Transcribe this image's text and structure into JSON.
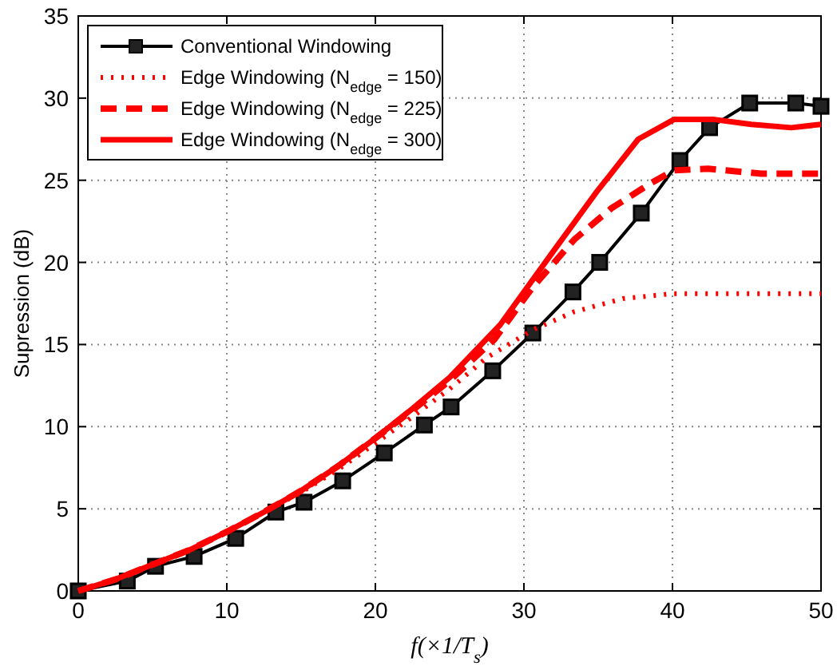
{
  "chart_data": {
    "type": "line",
    "xlabel": "f(×1/T$_{s}$)",
    "ylabel": "Supression (dB)",
    "xlim": [
      0,
      50
    ],
    "ylim": [
      0,
      35
    ],
    "xticks": [
      0,
      10,
      20,
      30,
      40,
      50
    ],
    "yticks": [
      0,
      5,
      10,
      15,
      20,
      25,
      30,
      35
    ],
    "grid": true,
    "legend": "top left",
    "series": [
      {
        "name": "Conventional Windowing",
        "color": "#000000",
        "marker": "square",
        "line_style": "solid",
        "x": [
          0,
          3.3,
          5.2,
          7.8,
          10.6,
          13.3,
          15.2,
          17.8,
          20.6,
          23.3,
          25.1,
          27.9,
          30.6,
          33.3,
          35.1,
          37.9,
          40.5,
          42.5,
          45.2,
          48.3,
          50
        ],
        "values": [
          0,
          0.6,
          1.5,
          2.1,
          3.2,
          4.8,
          5.4,
          6.7,
          8.4,
          10.1,
          11.2,
          13.4,
          15.7,
          18.2,
          20,
          23,
          26.2,
          28.2,
          29.7,
          29.7,
          29.5
        ]
      },
      {
        "name": "Edge Windowing (N$_{edge}$ = 150)",
        "color": "#ff0000",
        "marker": "none",
        "line_style": "dotted",
        "x": [
          0,
          2.5,
          5,
          7.5,
          10,
          12.5,
          15,
          17.5,
          20,
          22.5,
          25,
          27.5,
          30.6,
          33.4,
          36.7,
          40.1,
          45,
          50
        ],
        "values": [
          0,
          0.7,
          1.6,
          2.5,
          3.6,
          4.8,
          6.0,
          7.4,
          9.0,
          10.6,
          12.3,
          14.2,
          15.9,
          17,
          17.8,
          18.1,
          18.1,
          18.1
        ]
      },
      {
        "name": "Edge Windowing (N$_{edge}$ = 225)",
        "color": "#ff0000",
        "marker": "none",
        "line_style": "dashed",
        "x": [
          0,
          2.5,
          5,
          7.5,
          10,
          12.5,
          15,
          17.5,
          20,
          22.5,
          25,
          28,
          30.6,
          33.4,
          35.9,
          38.5,
          40.1,
          42.4,
          46,
          50
        ],
        "values": [
          0,
          0.7,
          1.6,
          2.5,
          3.6,
          4.8,
          6.1,
          7.6,
          9.3,
          11,
          12.8,
          15.3,
          18.5,
          21.4,
          23.3,
          24.8,
          25.6,
          25.7,
          25.4,
          25.4
        ]
      },
      {
        "name": "Edge Windowing (N$_{edge}$ = 300)",
        "color": "#ff0000",
        "marker": "none",
        "line_style": "solid",
        "x": [
          0,
          2.5,
          5,
          7.5,
          10,
          12.5,
          15,
          17.5,
          20,
          22.5,
          25,
          28.4,
          32,
          34.9,
          37.7,
          40.1,
          42.8,
          45.3,
          48,
          50
        ],
        "values": [
          0,
          0.7,
          1.6,
          2.5,
          3.6,
          4.8,
          6.1,
          7.6,
          9.3,
          11.1,
          13,
          16.2,
          20.7,
          24.3,
          27.5,
          28.7,
          28.7,
          28.4,
          28.2,
          28.4
        ]
      }
    ]
  }
}
